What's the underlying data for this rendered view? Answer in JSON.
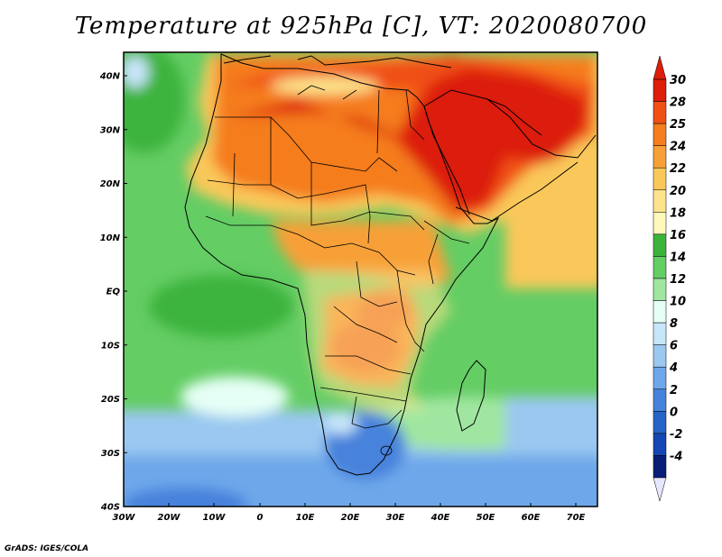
{
  "title": "Temperature at 925hPa [C], VT: 2020080700",
  "footer": "GrADS: IGES/COLA",
  "lat_labels": [
    "40N",
    "30N",
    "20N",
    "10N",
    "EQ",
    "10S",
    "20S",
    "30S",
    "40S"
  ],
  "lon_labels": [
    "30W",
    "20W",
    "10W",
    "0",
    "10E",
    "20E",
    "30E",
    "40E",
    "50E",
    "60E",
    "70E"
  ],
  "colorbar": {
    "labels": [
      "30",
      "28",
      "25",
      "24",
      "22",
      "20",
      "18",
      "16",
      "14",
      "12",
      "10",
      "8",
      "6",
      "4",
      "2",
      "0",
      "-2",
      "-4"
    ],
    "colors": [
      "#dc1e0a",
      "#f05014",
      "#f57d1e",
      "#f7a038",
      "#fac85a",
      "#fde48c",
      "#fff8bc",
      "#3cb43c",
      "#64cd64",
      "#a0e6a0",
      "#e6fff6",
      "#c8e6fa",
      "#9ac8f0",
      "#6ea8ea",
      "#4682dc",
      "#2864c8",
      "#1446b4",
      "#0a1e78"
    ]
  }
}
